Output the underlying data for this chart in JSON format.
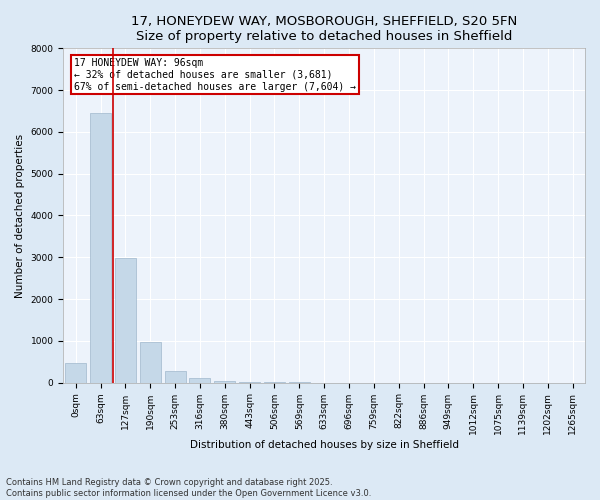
{
  "title_line1": "17, HONEYDEW WAY, MOSBOROUGH, SHEFFIELD, S20 5FN",
  "title_line2": "Size of property relative to detached houses in Sheffield",
  "xlabel": "Distribution of detached houses by size in Sheffield",
  "ylabel": "Number of detached properties",
  "bar_labels": [
    "0sqm",
    "63sqm",
    "127sqm",
    "190sqm",
    "253sqm",
    "316sqm",
    "380sqm",
    "443sqm",
    "506sqm",
    "569sqm",
    "633sqm",
    "696sqm",
    "759sqm",
    "822sqm",
    "886sqm",
    "949sqm",
    "1012sqm",
    "1075sqm",
    "1139sqm",
    "1202sqm",
    "1265sqm"
  ],
  "bar_values": [
    480,
    6450,
    2980,
    960,
    280,
    110,
    40,
    20,
    5,
    3,
    2,
    1,
    1,
    0,
    0,
    0,
    0,
    0,
    0,
    0,
    0
  ],
  "bar_color": "#c5d8e8",
  "bar_edge_color": "#a0b8cc",
  "property_line_x": 1.5,
  "annotation_text": "17 HONEYDEW WAY: 96sqm\n← 32% of detached houses are smaller (3,681)\n67% of semi-detached houses are larger (7,604) →",
  "annotation_box_color": "#ffffff",
  "annotation_box_edge": "#cc0000",
  "vline_color": "#cc0000",
  "ylim": [
    0,
    8000
  ],
  "yticks": [
    0,
    1000,
    2000,
    3000,
    4000,
    5000,
    6000,
    7000,
    8000
  ],
  "background_color": "#dce9f5",
  "plot_area_color": "#edf3fb",
  "footer_line1": "Contains HM Land Registry data © Crown copyright and database right 2025.",
  "footer_line2": "Contains public sector information licensed under the Open Government Licence v3.0.",
  "title_fontsize": 9.5,
  "axis_label_fontsize": 7.5,
  "tick_fontsize": 6.5,
  "annotation_fontsize": 7,
  "footer_fontsize": 6
}
